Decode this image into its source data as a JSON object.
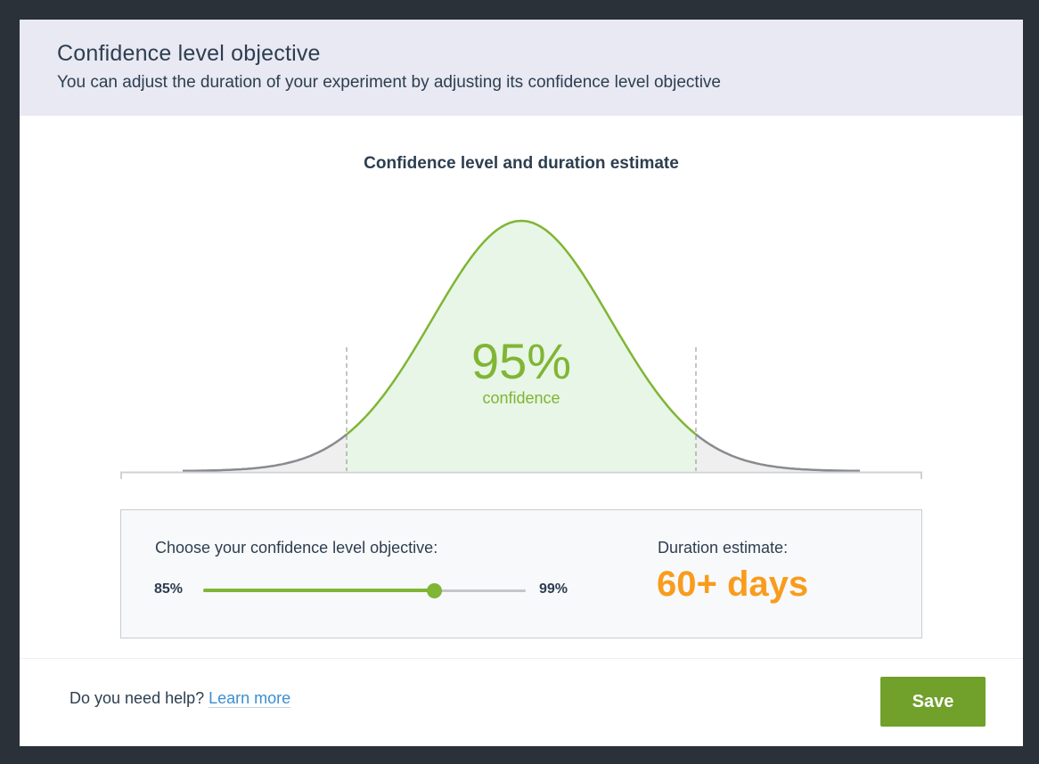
{
  "modal": {
    "title": "Confidence level objective",
    "subtitle": "You can adjust the duration of your experiment by adjusting its confidence level objective"
  },
  "chart": {
    "title": "Confidence level and duration estimate",
    "center_value": "95%",
    "center_label": "confidence"
  },
  "chart_data": {
    "type": "area",
    "title": "Confidence level and duration estimate",
    "distribution": "normal",
    "confidence_percent": 95,
    "annotation": "95% confidence",
    "shaded_region": "central 95%",
    "tails": "unshaded"
  },
  "controls": {
    "choose_label": "Choose your confidence level objective:",
    "slider_min": "85%",
    "slider_max": "99%",
    "slider_min_value": 85,
    "slider_max_value": 99,
    "slider_value": 95,
    "duration_label": "Duration estimate:",
    "duration_value": "60+ days"
  },
  "footer": {
    "help_text": "Do you need help?",
    "learn_more": "Learn more",
    "save_label": "Save"
  },
  "colors": {
    "accent_green": "#80b535",
    "save_green": "#71a02b",
    "duration_orange": "#f99c1c",
    "header_bg": "#e8e9f3",
    "text_dark": "#2d3e50",
    "link_blue": "#3b8fd1"
  }
}
